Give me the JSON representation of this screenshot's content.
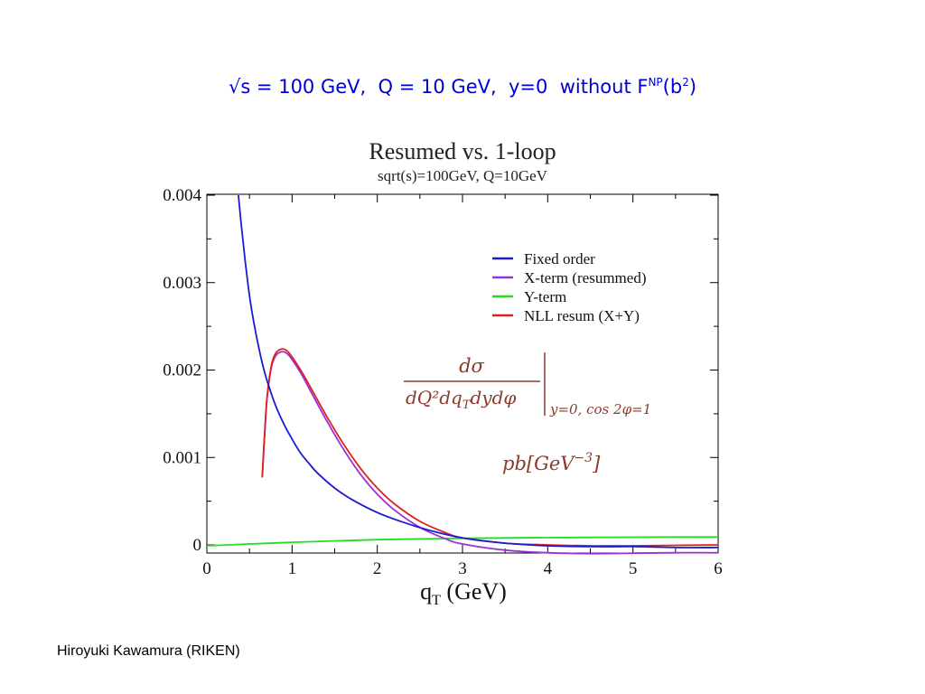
{
  "slide": {
    "title_prefix": "√s = 100 GeV,  Q = 10 GeV,  y=0  without F",
    "title_sup1": "NP",
    "title_mid": "(b",
    "title_sup2": "2",
    "title_suffix": ")",
    "footer": "Hiroyuki Kawamura (RIKEN)",
    "title_color": "#0000cc"
  },
  "chart_data": {
    "type": "line",
    "title": "Resumed vs. 1-loop",
    "subtitle": "sqrt(s)=100GeV, Q=10GeV",
    "xlabel_main": "q",
    "xlabel_sub": "T",
    "xlabel_unit": " (GeV)",
    "ylabel": "",
    "xlim": [
      0,
      6
    ],
    "ylim": [
      -0.0001,
      0.004
    ],
    "x_ticks": [
      0,
      1,
      2,
      3,
      4,
      5,
      6
    ],
    "x_tick_labels": [
      "0",
      "1",
      "2",
      "3",
      "4",
      "5",
      "6"
    ],
    "y_ticks": [
      0,
      0.001,
      0.002,
      0.003,
      0.004
    ],
    "y_tick_labels": [
      "0",
      "0.001",
      "0.002",
      "0.003",
      "0.004"
    ],
    "grid": false,
    "legend_position": "top-right",
    "annotation": {
      "numerator": "dσ",
      "denominator": "dQ²dq",
      "denominator_sub": "T",
      "denominator_rest": "dydφ",
      "condition": "y=0, cos 2φ=1",
      "units": "pb[GeV",
      "units_sup": "−3",
      "units_close": "]"
    },
    "series": [
      {
        "name": "Fixed order",
        "color": "#1a1ad6",
        "x": [
          0.37,
          0.4,
          0.45,
          0.5,
          0.55,
          0.6,
          0.65,
          0.7,
          0.8,
          0.9,
          1.0,
          1.1,
          1.2,
          1.3,
          1.5,
          1.7,
          2.0,
          2.3,
          2.6,
          3.0,
          3.5,
          4.0,
          4.5,
          5.0,
          5.5,
          6.0
        ],
        "y": [
          0.004,
          0.0037,
          0.00325,
          0.00285,
          0.00255,
          0.0023,
          0.00208,
          0.0019,
          0.00161,
          0.00139,
          0.00121,
          0.00105,
          0.00093,
          0.00082,
          0.00065,
          0.00052,
          0.00037,
          0.00026,
          0.00017,
          8e-05,
          2e-05,
          -1e-05,
          -2e-05,
          -2e-05,
          -3e-05,
          -3e-05
        ]
      },
      {
        "name": "X-term (resummed)",
        "color": "#9b30d9",
        "x": [
          0.65,
          0.7,
          0.75,
          0.8,
          0.85,
          0.9,
          0.95,
          1.0,
          1.1,
          1.2,
          1.4,
          1.6,
          1.8,
          2.0,
          2.2,
          2.5,
          2.8,
          3.0,
          3.5,
          4.0,
          4.5,
          5.0,
          5.5,
          6.0
        ],
        "y": [
          0.00077,
          0.0016,
          0.002,
          0.00215,
          0.0022,
          0.00221,
          0.00218,
          0.00212,
          0.00197,
          0.00179,
          0.00143,
          0.0011,
          0.00081,
          0.00058,
          0.0004,
          0.0002,
          7e-05,
          1e-05,
          -6e-05,
          -9e-05,
          -0.0001,
          -9.5e-05,
          -9e-05,
          -9e-05
        ]
      },
      {
        "name": "Y-term",
        "color": "#22dd22",
        "x": [
          0,
          0.5,
          1.0,
          1.5,
          2.0,
          2.5,
          3.0,
          3.5,
          4.0,
          4.5,
          5.0,
          5.5,
          6.0
        ],
        "y": [
          -1e-05,
          1e-05,
          3e-05,
          4.5e-05,
          6e-05,
          6.8e-05,
          7.5e-05,
          8e-05,
          8.3e-05,
          8.6e-05,
          8.8e-05,
          9e-05,
          9e-05
        ]
      },
      {
        "name": "NLL resum (X+Y)",
        "color": "#dd2020",
        "x": [
          0.65,
          0.7,
          0.75,
          0.8,
          0.85,
          0.9,
          0.95,
          1.0,
          1.1,
          1.2,
          1.4,
          1.6,
          1.8,
          2.0,
          2.2,
          2.5,
          2.8,
          3.0,
          3.5,
          4.0,
          4.5,
          5.0,
          5.5,
          6.0
        ],
        "y": [
          0.00078,
          0.00161,
          0.00202,
          0.00218,
          0.00223,
          0.00224,
          0.00221,
          0.00215,
          0.002,
          0.00183,
          0.00148,
          0.00116,
          0.00088,
          0.00065,
          0.00047,
          0.00027,
          0.00014,
          8e-05,
          2e-05,
          0.0,
          -1e-05,
          -1e-05,
          -5e-06,
          0.0
        ]
      }
    ]
  }
}
